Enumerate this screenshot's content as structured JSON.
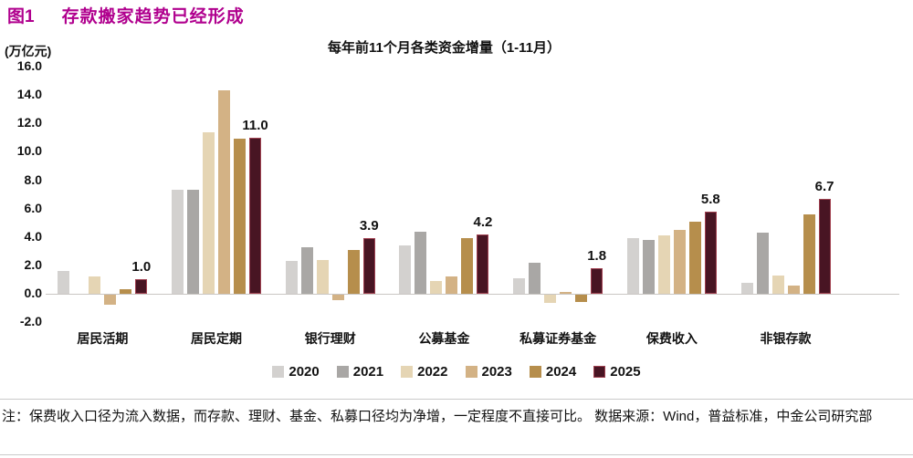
{
  "figure": {
    "label": "图1",
    "title": "存款搬家趋势已经形成",
    "accent_color": "#b0008e"
  },
  "chart_data": {
    "type": "bar",
    "title": "每年前11个月各类资金增量（1-11月）",
    "unit_label": "(万亿元)",
    "ylim": [
      -2.0,
      16.0
    ],
    "ytick_step": 2.0,
    "grid": false,
    "legend_position": "bottom",
    "axis_color": "#c9c6c3",
    "categories": [
      "居民活期",
      "居民定期",
      "银行理财",
      "公募基金",
      "私募证券基金",
      "保费收入",
      "非银存款"
    ],
    "series": [
      {
        "name": "2020",
        "color": "#d3d1cf",
        "values": [
          1.6,
          7.3,
          2.3,
          3.4,
          1.1,
          3.9,
          0.8
        ]
      },
      {
        "name": "2021",
        "color": "#a9a7a5",
        "values": [
          0.0,
          7.3,
          3.3,
          4.4,
          2.2,
          3.8,
          4.3
        ]
      },
      {
        "name": "2022",
        "color": "#e5d5b4",
        "values": [
          1.2,
          11.4,
          2.4,
          0.9,
          -0.6,
          4.1,
          1.3
        ]
      },
      {
        "name": "2023",
        "color": "#d3b285",
        "values": [
          -0.7,
          14.3,
          -0.4,
          1.2,
          0.1,
          4.5,
          0.6
        ]
      },
      {
        "name": "2024",
        "color": "#b68e4c",
        "values": [
          0.3,
          10.9,
          3.1,
          3.9,
          -0.5,
          5.1,
          5.6
        ]
      },
      {
        "name": "2025",
        "color": "#481523",
        "border_color": "#a04050",
        "values": [
          1.0,
          11.0,
          3.9,
          4.2,
          1.8,
          5.8,
          6.7
        ],
        "labels": [
          "1.0",
          "11.0",
          "3.9",
          "4.2",
          "1.8",
          "5.8",
          "6.7"
        ]
      }
    ]
  },
  "footnote": "注：保费收入口径为流入数据，而存款、理财、基金、私募口径均为净增，一定程度不直接可比。 数据来源：Wind，普益标准，中金公司研究部"
}
